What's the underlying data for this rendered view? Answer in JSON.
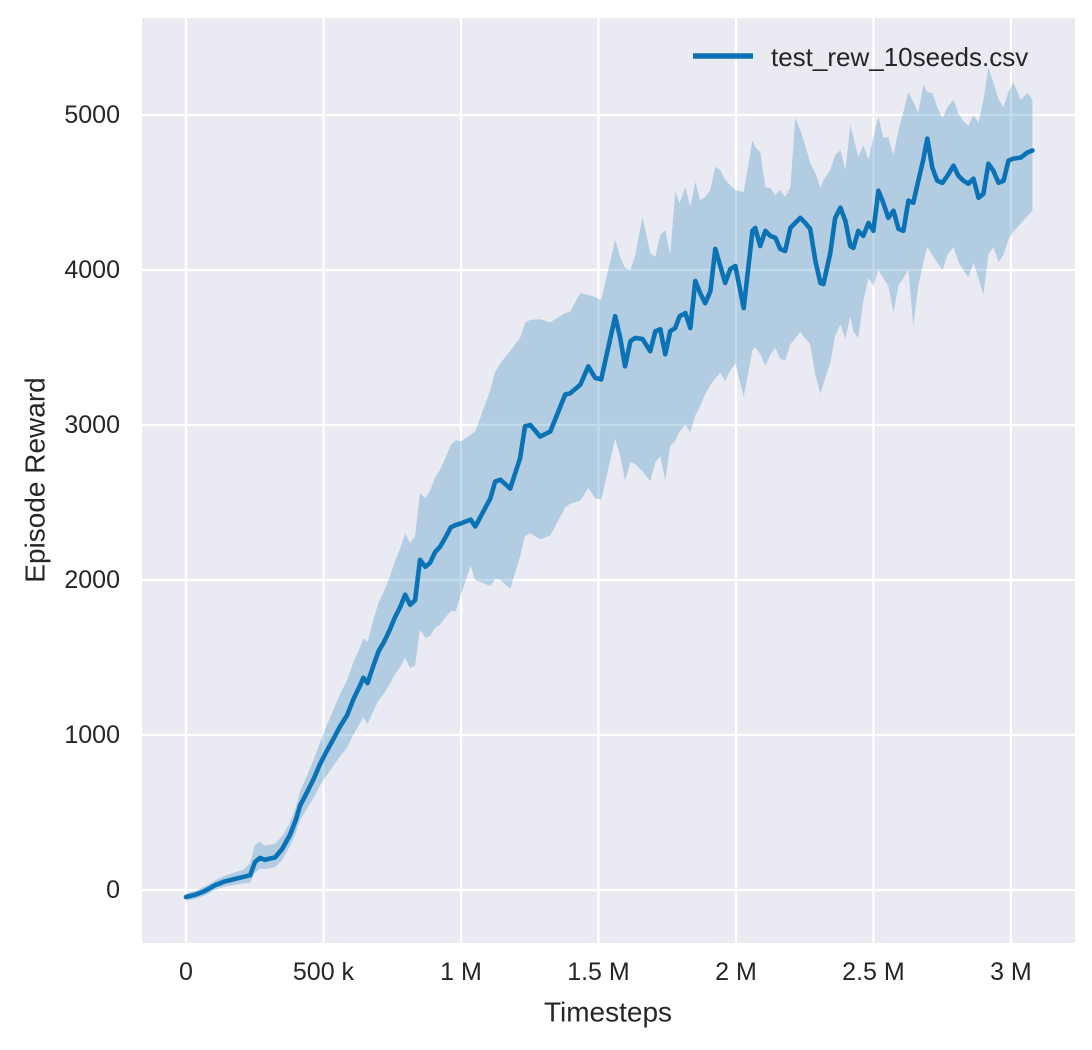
{
  "figure": {
    "background": "#ffffff",
    "axes_background": "#eaeaf2",
    "grid_color": "#ffffff",
    "text_color": "#262626"
  },
  "chart_data": {
    "type": "line",
    "title": "",
    "xlabel": "Timesteps",
    "ylabel": "Episode Reward",
    "grid": true,
    "legend_position": "upper right",
    "xlim": [
      -160000,
      3233000
    ],
    "ylim": [
      -342,
      5626
    ],
    "x_ticks": {
      "values": [
        0,
        500000,
        1000000,
        1500000,
        2000000,
        2500000,
        3000000
      ],
      "labels": [
        "0",
        "500 k",
        "1 M",
        "1.5 M",
        "2 M",
        "2.5 M",
        "3 M"
      ]
    },
    "y_ticks": {
      "values": [
        0,
        1000,
        2000,
        3000,
        4000,
        5000
      ],
      "labels": [
        "0",
        "1000",
        "2000",
        "3000",
        "4000",
        "5000"
      ]
    },
    "series": [
      {
        "name": "test_rew_10seeds.csv",
        "color": "#0b73b5",
        "band_color": "#0b73b5",
        "band_opacity": 0.25,
        "x": [
          0,
          35000,
          70000,
          105000,
          140000,
          175000,
          210000,
          233000,
          251000,
          269000,
          287000,
          324000,
          350000,
          378000,
          400000,
          415000,
          440000,
          465000,
          487000,
          510000,
          535000,
          560000,
          585000,
          610000,
          633000,
          645000,
          660000,
          680000,
          700000,
          720000,
          740000,
          760000,
          780000,
          797000,
          815000,
          833000,
          851000,
          870000,
          887000,
          906000,
          924000,
          945000,
          963000,
          981000,
          1000000,
          1035000,
          1052000,
          1107000,
          1124000,
          1143000,
          1179000,
          1215000,
          1233000,
          1252000,
          1288000,
          1325000,
          1379000,
          1397000,
          1434000,
          1463000,
          1488000,
          1510000,
          1561000,
          1579000,
          1597000,
          1616000,
          1634000,
          1660000,
          1688000,
          1707000,
          1725000,
          1743000,
          1761000,
          1779000,
          1795000,
          1816000,
          1834000,
          1852000,
          1870000,
          1888000,
          1907000,
          1925000,
          1943000,
          1961000,
          1979000,
          1998000,
          2028000,
          2060000,
          2070000,
          2088000,
          2107000,
          2125000,
          2143000,
          2161000,
          2179000,
          2198000,
          2216000,
          2234000,
          2252000,
          2270000,
          2289000,
          2307000,
          2318000,
          2343000,
          2361000,
          2380000,
          2398000,
          2416000,
          2427000,
          2445000,
          2463000,
          2482000,
          2500000,
          2518000,
          2536000,
          2554000,
          2573000,
          2591000,
          2609000,
          2627000,
          2645000,
          2663000,
          2681000,
          2696000,
          2714000,
          2732000,
          2751000,
          2769000,
          2791000,
          2809000,
          2827000,
          2845000,
          2864000,
          2882000,
          2900000,
          2918000,
          2936000,
          2955000,
          2973000,
          2991000,
          3009000,
          3035000,
          3060000,
          3078000
        ],
        "mean": [
          -45,
          -30,
          -5,
          30,
          55,
          70,
          85,
          95,
          180,
          207,
          195,
          210,
          265,
          355,
          455,
          545,
          630,
          720,
          810,
          890,
          970,
          1055,
          1125,
          1235,
          1320,
          1370,
          1335,
          1440,
          1540,
          1600,
          1675,
          1760,
          1830,
          1905,
          1840,
          1870,
          2130,
          2085,
          2110,
          2180,
          2215,
          2280,
          2340,
          2355,
          2365,
          2390,
          2345,
          2527,
          2634,
          2647,
          2590,
          2786,
          2991,
          3000,
          2925,
          2958,
          3197,
          3204,
          3260,
          3379,
          3304,
          3294,
          3702,
          3562,
          3379,
          3541,
          3562,
          3555,
          3476,
          3605,
          3618,
          3456,
          3605,
          3625,
          3702,
          3722,
          3625,
          3929,
          3851,
          3786,
          3864,
          4136,
          4026,
          3916,
          4006,
          4026,
          3754,
          4253,
          4272,
          4155,
          4253,
          4220,
          4208,
          4136,
          4123,
          4272,
          4304,
          4337,
          4304,
          4265,
          4058,
          3916,
          3909,
          4110,
          4337,
          4402,
          4317,
          4155,
          4142,
          4253,
          4220,
          4304,
          4253,
          4512,
          4434,
          4337,
          4382,
          4265,
          4253,
          4447,
          4434,
          4576,
          4710,
          4848,
          4660,
          4576,
          4563,
          4608,
          4673,
          4608,
          4576,
          4557,
          4589,
          4466,
          4492,
          4686,
          4641,
          4563,
          4576,
          4706,
          4719,
          4725,
          4758,
          4771
        ],
        "band_low": [
          -70,
          -58,
          -35,
          0,
          22,
          33,
          42,
          48,
          112,
          138,
          135,
          148,
          192,
          282,
          372,
          452,
          525,
          598,
          672,
          736,
          798,
          862,
          918,
          1005,
          1078,
          1115,
          1072,
          1148,
          1222,
          1268,
          1328,
          1392,
          1442,
          1498,
          1432,
          1448,
          1682,
          1628,
          1638,
          1692,
          1712,
          1762,
          1798,
          1800,
          1905,
          2092,
          1998,
          1962,
          2005,
          2002,
          1942,
          2152,
          2282,
          2302,
          2262,
          2288,
          2468,
          2492,
          2512,
          2595,
          2528,
          2518,
          2912,
          2802,
          2642,
          2762,
          2748,
          2702,
          2638,
          2762,
          2798,
          2642,
          2868,
          2898,
          2958,
          3002,
          2952,
          3062,
          3122,
          3198,
          3258,
          3302,
          3338,
          3282,
          3352,
          3398,
          3182,
          3482,
          3502,
          3458,
          3382,
          3452,
          3498,
          3428,
          3418,
          3522,
          3558,
          3602,
          3558,
          3522,
          3322,
          3202,
          3268,
          3402,
          3578,
          3648,
          3558,
          3702,
          3602,
          3562,
          3798,
          3948,
          3898,
          4002,
          3948,
          3898,
          3725,
          3902,
          3948,
          4002,
          3642,
          3898,
          4048,
          4148,
          4098,
          4048,
          3998,
          4098,
          4148,
          4052,
          3998,
          3952,
          4048,
          3948,
          3842,
          4102,
          4148,
          4052,
          4098,
          4198,
          4248,
          4298,
          4348,
          4382
        ],
        "band_high": [
          -22,
          -4,
          24,
          62,
          92,
          112,
          132,
          175,
          292,
          312,
          285,
          298,
          348,
          432,
          540,
          638,
          738,
          845,
          950,
          1052,
          1158,
          1262,
          1352,
          1475,
          1568,
          1625,
          1598,
          1735,
          1852,
          1928,
          2015,
          2122,
          2208,
          2298,
          2238,
          2282,
          2562,
          2528,
          2572,
          2662,
          2712,
          2795,
          2872,
          2902,
          2895,
          2938,
          2958,
          3228,
          3342,
          3398,
          3478,
          3562,
          3658,
          3678,
          3682,
          3662,
          3723,
          3729,
          3852,
          3838,
          3826,
          3806,
          4194,
          4084,
          4013,
          4000,
          4097,
          4342,
          4110,
          4084,
          4226,
          4258,
          4097,
          4503,
          4432,
          4535,
          4406,
          4568,
          4452,
          4471,
          4518,
          4665,
          4645,
          4581,
          4548,
          4516,
          4503,
          4839,
          4794,
          4761,
          4535,
          4529,
          4484,
          4516,
          4471,
          4535,
          4981,
          4903,
          4806,
          4690,
          4626,
          4529,
          4581,
          4645,
          4742,
          4774,
          4645,
          4935,
          4858,
          4729,
          4806,
          4710,
          4858,
          4987,
          4852,
          4858,
          4742,
          4902,
          5020,
          5150,
          5084,
          5013,
          5194,
          5148,
          5142,
          5050,
          4980,
          5050,
          5100,
          5010,
          4960,
          4930,
          5000,
          4950,
          5100,
          5307,
          5210,
          5100,
          5050,
          5150,
          5213,
          5097,
          5142,
          5102
        ]
      }
    ]
  }
}
